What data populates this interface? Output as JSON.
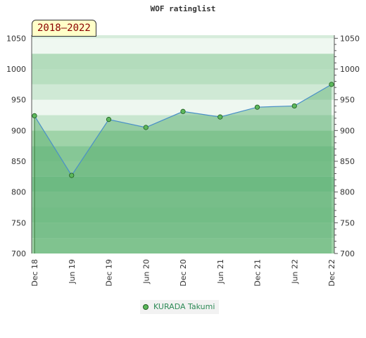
{
  "chart_data": {
    "type": "area",
    "title": "WOF ratinglist",
    "period_label": "2018–2022",
    "x_tick_labels": [
      "Dec 18",
      "Jun 19",
      "Dec 19",
      "Jun 20",
      "Dec 20",
      "Jun 21",
      "Dec 21",
      "Jun 22",
      "Dec 22"
    ],
    "y_ticks": [
      700,
      750,
      800,
      850,
      900,
      950,
      1000,
      1050
    ],
    "ylim": [
      700,
      1055
    ],
    "series": [
      {
        "name": "KURADA Takumi",
        "x": [
          "Dec 18",
          "Jun 19",
          "Dec 19",
          "Jun 20",
          "Dec 20",
          "Jun 21",
          "Dec 21",
          "Jun 22",
          "Dec 22"
        ],
        "values": [
          924,
          827,
          918,
          905,
          931,
          922,
          938,
          940,
          975
        ]
      }
    ],
    "legend_position": "bottom-center",
    "grid": true,
    "colors": {
      "line": "#4a90c8",
      "area": "#5cb070",
      "marker": "#5cb85c",
      "legend_text": "#2e8b57",
      "badge_text": "#8b0000"
    }
  }
}
